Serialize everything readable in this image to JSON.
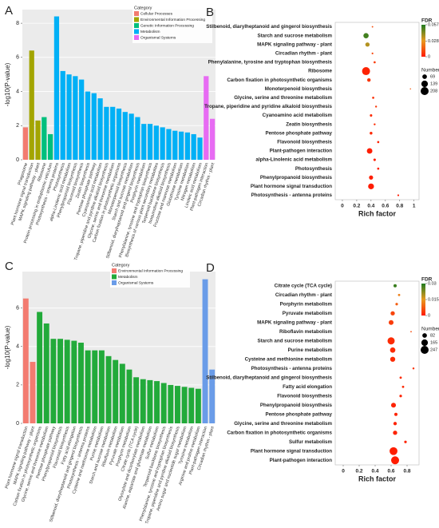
{
  "chart_data": [
    {
      "type": "bar",
      "panel": "A",
      "ylabel": "-log10(P-value)",
      "legend_title": "Category",
      "ylim": [
        0,
        8.8
      ],
      "yticks": [
        0,
        2,
        4,
        6,
        8
      ],
      "grid": true,
      "series": [
        {
          "name": "Cellular Processes",
          "color": "#f37b70",
          "categories": [
            "Phagosome"
          ],
          "values": [
            1.9
          ]
        },
        {
          "name": "Environmental Information Processing",
          "color": "#a3a500",
          "categories": [
            "Plant hormone signal transduction",
            "MAPK signaling pathway - plant"
          ],
          "values": [
            6.4,
            2.3
          ]
        },
        {
          "name": "Genetic Information Processing",
          "color": "#00bf7d",
          "categories": [
            "Ribosome",
            "Protein processing in endoplasmic reticulum"
          ],
          "values": [
            2.5,
            1.5
          ]
        },
        {
          "name": "Metabolism",
          "color": "#00b0f6",
          "categories": [
            "Photosynthesis - antenna proteins",
            "Photosynthesis",
            "alpha-Linolenic acid metabolism",
            "Phenylpropanoid biosynthesis",
            "Flavonoid biosynthesis",
            "Zeatin biosynthesis",
            "Pentose phosphate pathway",
            "Cyanoamino acid metabolism",
            "Tropane, piperidine and pyridine alkaloid biosynthesis",
            "Glycine, serine and threonine metabolism",
            "Carbon fixation in photosynthetic organisms",
            "Monoterpenoid biosynthesis",
            "Starch and sucrose metabolism",
            "Stilbenoid, diarylheptanoid and gingerol biosynthesis",
            "Porphyrin metabolism",
            "Phenylalanine, tyrosine and tryptophan biosynthesis",
            "Biosynthesis of various plant secondary metabolites",
            "Terpenoid backbone biosynthesis",
            "Isoquinoline alkaloid biosynthesis",
            "Fructose and mannose metabolism",
            "Glutathione metabolism",
            "Tyrosine metabolism",
            "Nitrogen metabolism",
            "Linoleic acid metabolism"
          ],
          "values": [
            8.4,
            5.2,
            5.0,
            4.9,
            4.7,
            4.0,
            3.9,
            3.6,
            3.1,
            3.1,
            3.0,
            2.8,
            2.7,
            2.5,
            2.1,
            2.1,
            2.0,
            1.9,
            1.8,
            1.7,
            1.65,
            1.6,
            1.5,
            1.3
          ]
        },
        {
          "name": "Organismal Systems",
          "color": "#e76bf3",
          "categories": [
            "Plant-pathogen interaction",
            "Circadian rhythm - plant"
          ],
          "values": [
            4.9,
            2.4
          ]
        }
      ]
    },
    {
      "type": "dot",
      "panel": "B",
      "xlabel": "Rich factor",
      "xlim": [
        -0.1,
        1.07
      ],
      "xticks": [
        0.0,
        0.2,
        0.4,
        0.6,
        0.8,
        1.0
      ],
      "fdr_title": "FDR",
      "fdr_lim": [
        0,
        0.057
      ],
      "fdr_ticks": [
        0,
        0.028,
        0.057
      ],
      "fdr_colors": [
        "#ff1a00",
        "#e89a20",
        "#1f7a1f"
      ],
      "size_title": "Number",
      "size_ticks": [
        69,
        139,
        208
      ],
      "categories": [
        "Stilbenoid, diarylheptanoid and gingerol biosynthesis",
        "Starch and sucrose metabolism",
        "MAPK signaling pathway - plant",
        "Circadian rhythm - plant",
        "Phenylalanine, tyrosine and tryptophan biosynthesis",
        "Ribosome",
        "Carbon fixation in photosynthetic organisms",
        "Monoterpenoid biosynthesis",
        "Glycine, serine and threonine metabolism",
        "Tropane, piperidine and pyridine alkaloid biosynthesis",
        "Cyanoamino acid metabolism",
        "Zeatin biosynthesis",
        "Pentose phosphate pathway",
        "Flavonoid biosynthesis",
        "Plant-pathogen interaction",
        "alpha-Linolenic acid metabolism",
        "Photosynthesis",
        "Phenylpropanoid biosynthesis",
        "Plant hormone signal transduction",
        "Photosynthesis - antenna proteins"
      ],
      "values": [
        0.42,
        0.33,
        0.35,
        0.42,
        0.45,
        0.33,
        0.37,
        0.95,
        0.43,
        0.47,
        0.4,
        0.45,
        0.4,
        0.5,
        0.38,
        0.45,
        0.5,
        0.4,
        0.4,
        0.78
      ],
      "fdr": [
        0.012,
        0.052,
        0.036,
        0.01,
        0.008,
        0.002,
        0.006,
        0.015,
        0.005,
        0.007,
        0.004,
        0.004,
        0.003,
        0.002,
        0.001,
        0.001,
        0.001,
        0.001,
        0.0005,
        0.0001
      ],
      "number": [
        8,
        90,
        60,
        10,
        15,
        208,
        40,
        5,
        15,
        12,
        20,
        12,
        25,
        15,
        100,
        20,
        15,
        55,
        110,
        10
      ]
    },
    {
      "type": "bar",
      "panel": "C",
      "ylabel": "-log10(P-value)",
      "legend_title": "Category",
      "ylim": [
        0,
        7.9
      ],
      "yticks": [
        0,
        2,
        4,
        6
      ],
      "grid": true,
      "series": [
        {
          "name": "Environmental Information Processing",
          "color": "#f37b70",
          "categories": [
            "Plant hormone signal transduction",
            "MAPK signaling pathway - plant"
          ],
          "values": [
            6.5,
            3.2
          ]
        },
        {
          "name": "Metabolism",
          "color": "#22aa3a",
          "categories": [
            "Carbon fixation in photosynthetic organisms",
            "Glycine, serine and threonine metabolism",
            "Pentose phosphate pathway",
            "Phenylpropanoid biosynthesis",
            "Flavonoid biosynthesis",
            "Fatty acid elongation",
            "Stilbenoid, diarylheptanoid and gingerol biosynthesis",
            "Photosynthesis - antenna proteins",
            "Cysteine and methionine metabolism",
            "Purine metabolism",
            "Starch and sucrose metabolism",
            "Riboflavin metabolism",
            "Pyruvate metabolism",
            "Porphyrin metabolism",
            "Citrate cycle (TCA cycle)",
            "Glyoxylate and dicarboxylate metabolism",
            "Alanine, aspartate and glutamate metabolism",
            "Sulfur metabolism",
            "Terpenoid backbone biosynthesis",
            "Phenylalanine, tyrosine and tryptophan biosynthesis",
            "Tropane, piperidine and pyridine alkaloid biosynthesis",
            "Amino sugar and nucleotide sugar metabolism",
            "Tyrosine metabolism",
            "Arginine and proline metabolism"
          ],
          "values": [
            5.8,
            5.2,
            4.4,
            4.4,
            4.35,
            4.3,
            4.2,
            3.8,
            3.8,
            3.8,
            3.5,
            3.3,
            3.1,
            2.8,
            2.4,
            2.3,
            2.25,
            2.2,
            2.1,
            2.0,
            1.95,
            1.9,
            1.85,
            1.8
          ]
        },
        {
          "name": "Organismal Systems",
          "color": "#6a9ce8",
          "categories": [
            "Plant-pathogen interaction",
            "Circadian rhythm - plant"
          ],
          "values": [
            7.5,
            2.8
          ]
        }
      ]
    },
    {
      "type": "dot",
      "panel": "D",
      "xlabel": "Rich factor",
      "xlim": [
        -0.1,
        0.95
      ],
      "xticks": [
        0.0,
        0.2,
        0.4,
        0.6,
        0.8
      ],
      "fdr_title": "FDR",
      "fdr_lim": [
        0,
        0.03
      ],
      "fdr_ticks": [
        0,
        0.015,
        0.03
      ],
      "fdr_colors": [
        "#ff1a00",
        "#e89a20",
        "#1f7a1f"
      ],
      "size_title": "Number",
      "size_ticks": [
        82,
        165,
        247
      ],
      "categories": [
        "Citrate cycle (TCA cycle)",
        "Circadian rhythm - plant",
        "Porphyrin metabolism",
        "Pyruvate metabolism",
        "MAPK signaling pathway - plant",
        "Riboflavin metabolism",
        "Starch and sucrose metabolism",
        "Purine metabolism",
        "Cysteine and methionine metabolism",
        "Photosynthesis - antenna proteins",
        "Stilbenoid, diarylheptanoid and gingerol biosynthesis",
        "Fatty acid elongation",
        "Flavonoid biosynthesis",
        "Phenylpropanoid biosynthesis",
        "Pentose phosphate pathway",
        "Glycine, serine and threonine metabolism",
        "Carbon fixation in photosynthetic organisms",
        "Sulfur metabolism",
        "Plant hormone signal transduction",
        "Plant-pathogen interaction"
      ],
      "values": [
        0.65,
        0.7,
        0.67,
        0.62,
        0.6,
        0.85,
        0.6,
        0.62,
        0.62,
        0.88,
        0.72,
        0.75,
        0.72,
        0.63,
        0.66,
        0.65,
        0.65,
        0.78,
        0.63,
        0.65
      ],
      "fdr": [
        0.028,
        0.012,
        0.008,
        0.005,
        0.004,
        0.006,
        0.002,
        0.002,
        0.002,
        0.003,
        0.002,
        0.002,
        0.001,
        0.001,
        0.001,
        0.001,
        0.001,
        0.001,
        0.0005,
        0.0002
      ],
      "number": [
        40,
        20,
        25,
        70,
        90,
        8,
        200,
        110,
        100,
        15,
        20,
        20,
        25,
        90,
        40,
        45,
        70,
        25,
        240,
        247
      ]
    }
  ]
}
